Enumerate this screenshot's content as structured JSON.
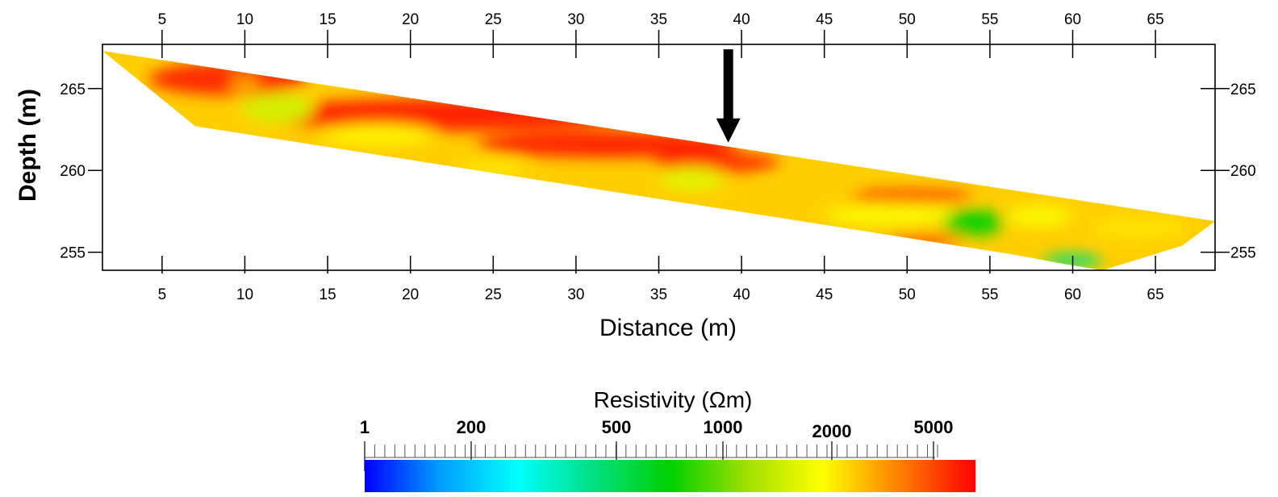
{
  "chart_data": [
    {
      "type": "heatmap",
      "xlabel": "Distance (m)",
      "ylabel": "Depth (m)",
      "xlim": [
        1.4,
        68.6
      ],
      "ylim": [
        253.9,
        267.7
      ],
      "x_ticks": [
        5,
        10,
        15,
        20,
        25,
        30,
        35,
        40,
        45,
        50,
        55,
        60,
        65
      ],
      "y_ticks": [
        255,
        260,
        265
      ],
      "grid": false,
      "section_outline": [
        {
          "x": 1.4,
          "y": 267.3
        },
        {
          "x": 68.6,
          "y": 256.9
        },
        {
          "x": 66.6,
          "y": 255.4
        },
        {
          "x": 61.8,
          "y": 253.9
        },
        {
          "x": 59.4,
          "y": 254.3
        },
        {
          "x": 56.2,
          "y": 254.9
        },
        {
          "x": 7.0,
          "y": 262.7
        },
        {
          "x": 3.6,
          "y": 265.5
        }
      ],
      "resistivity_zones": [
        {
          "x": 9,
          "y": 265.6,
          "rx": 4.8,
          "ry": 1.0,
          "ohm_m": 5500
        },
        {
          "x": 10,
          "y": 265.3,
          "rx": 0.9,
          "ry": 0.4,
          "ohm_m": 1700
        },
        {
          "x": 22,
          "y": 263.4,
          "rx": 11.5,
          "ry": 1.0,
          "ohm_m": 6000
        },
        {
          "x": 32,
          "y": 261.6,
          "rx": 8.0,
          "ry": 0.8,
          "ohm_m": 6000
        },
        {
          "x": 38.5,
          "y": 260.5,
          "rx": 3.8,
          "ry": 0.6,
          "ohm_m": 5500
        },
        {
          "x": 12,
          "y": 263.8,
          "rx": 2.2,
          "ry": 0.9,
          "ohm_m": 500
        },
        {
          "x": 18,
          "y": 262.2,
          "rx": 3.5,
          "ry": 0.6,
          "ohm_m": 900
        },
        {
          "x": 37,
          "y": 259.5,
          "rx": 2.0,
          "ry": 0.7,
          "ohm_m": 600
        },
        {
          "x": 25,
          "y": 260.2,
          "rx": 2.0,
          "ry": 0.4,
          "ohm_m": 1000
        },
        {
          "x": 50,
          "y": 258.4,
          "rx": 4.0,
          "ry": 0.35,
          "ohm_m": 6000
        },
        {
          "x": 49,
          "y": 257.3,
          "rx": 4.0,
          "ry": 0.6,
          "ohm_m": 800
        },
        {
          "x": 54,
          "y": 256.8,
          "rx": 1.8,
          "ry": 0.8,
          "ohm_m": 100
        },
        {
          "x": 60,
          "y": 254.5,
          "rx": 1.8,
          "ry": 0.4,
          "ohm_m": 30
        },
        {
          "x": 51,
          "y": 255.8,
          "rx": 2.5,
          "ry": 0.25,
          "ohm_m": 6000
        },
        {
          "x": 64,
          "y": 256.5,
          "rx": 3.0,
          "ry": 0.8,
          "ohm_m": 1100
        },
        {
          "x": 58,
          "y": 257.2,
          "rx": 2.0,
          "ry": 0.6,
          "ohm_m": 800
        },
        {
          "x": 44,
          "y": 258.6,
          "rx": 3.0,
          "ry": 0.5,
          "ohm_m": 1300
        }
      ],
      "annotations": [
        {
          "type": "arrow",
          "x": 39.2,
          "y_from": 267.4,
          "y_to": 261.7
        }
      ]
    },
    {
      "type": "colorbar",
      "title": "Resistivity (Ωm)",
      "tick_labels": [
        {
          "label": "1",
          "value": 1
        },
        {
          "label": "200",
          "value": 200
        },
        {
          "label": "500",
          "value": 500
        },
        {
          "label": "1000",
          "value": 1000
        },
        {
          "label": "2000",
          "value": 2000
        },
        {
          "label": "5000",
          "value": 5000
        }
      ],
      "colors": [
        "#0000ff",
        "#00a0ff",
        "#00ffff",
        "#00e080",
        "#00d000",
        "#a0e000",
        "#ffff00",
        "#ff8000",
        "#ff0000"
      ]
    }
  ]
}
